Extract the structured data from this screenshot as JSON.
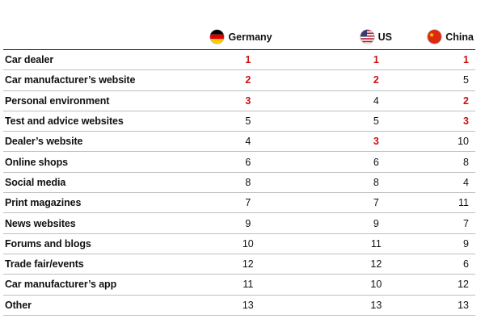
{
  "chart_data": {
    "type": "table",
    "columns": [
      "Germany",
      "US",
      "China"
    ],
    "rows": [
      {
        "label": "Car dealer",
        "values": [
          1,
          1,
          1
        ]
      },
      {
        "label": "Car manufacturer’s website",
        "values": [
          2,
          2,
          5
        ]
      },
      {
        "label": "Personal environment",
        "values": [
          3,
          4,
          2
        ]
      },
      {
        "label": "Test and advice websites",
        "values": [
          5,
          5,
          3
        ]
      },
      {
        "label": "Dealer’s website",
        "values": [
          4,
          3,
          10
        ]
      },
      {
        "label": "Online shops",
        "values": [
          6,
          6,
          8
        ]
      },
      {
        "label": "Social media",
        "values": [
          8,
          8,
          4
        ]
      },
      {
        "label": "Print magazines",
        "values": [
          7,
          7,
          11
        ]
      },
      {
        "label": "News websites",
        "values": [
          9,
          9,
          7
        ]
      },
      {
        "label": "Forums and blogs",
        "values": [
          10,
          11,
          9
        ]
      },
      {
        "label": "Trade fair/events",
        "values": [
          12,
          12,
          6
        ]
      },
      {
        "label": "Car manufacturer’s app",
        "values": [
          11,
          10,
          12
        ]
      },
      {
        "label": "Other",
        "values": [
          13,
          13,
          13
        ]
      }
    ],
    "highlight_color": "#cc1111",
    "flag_icons": [
      "germany-flag-icon",
      "us-flag-icon",
      "china-flag-icon"
    ]
  }
}
